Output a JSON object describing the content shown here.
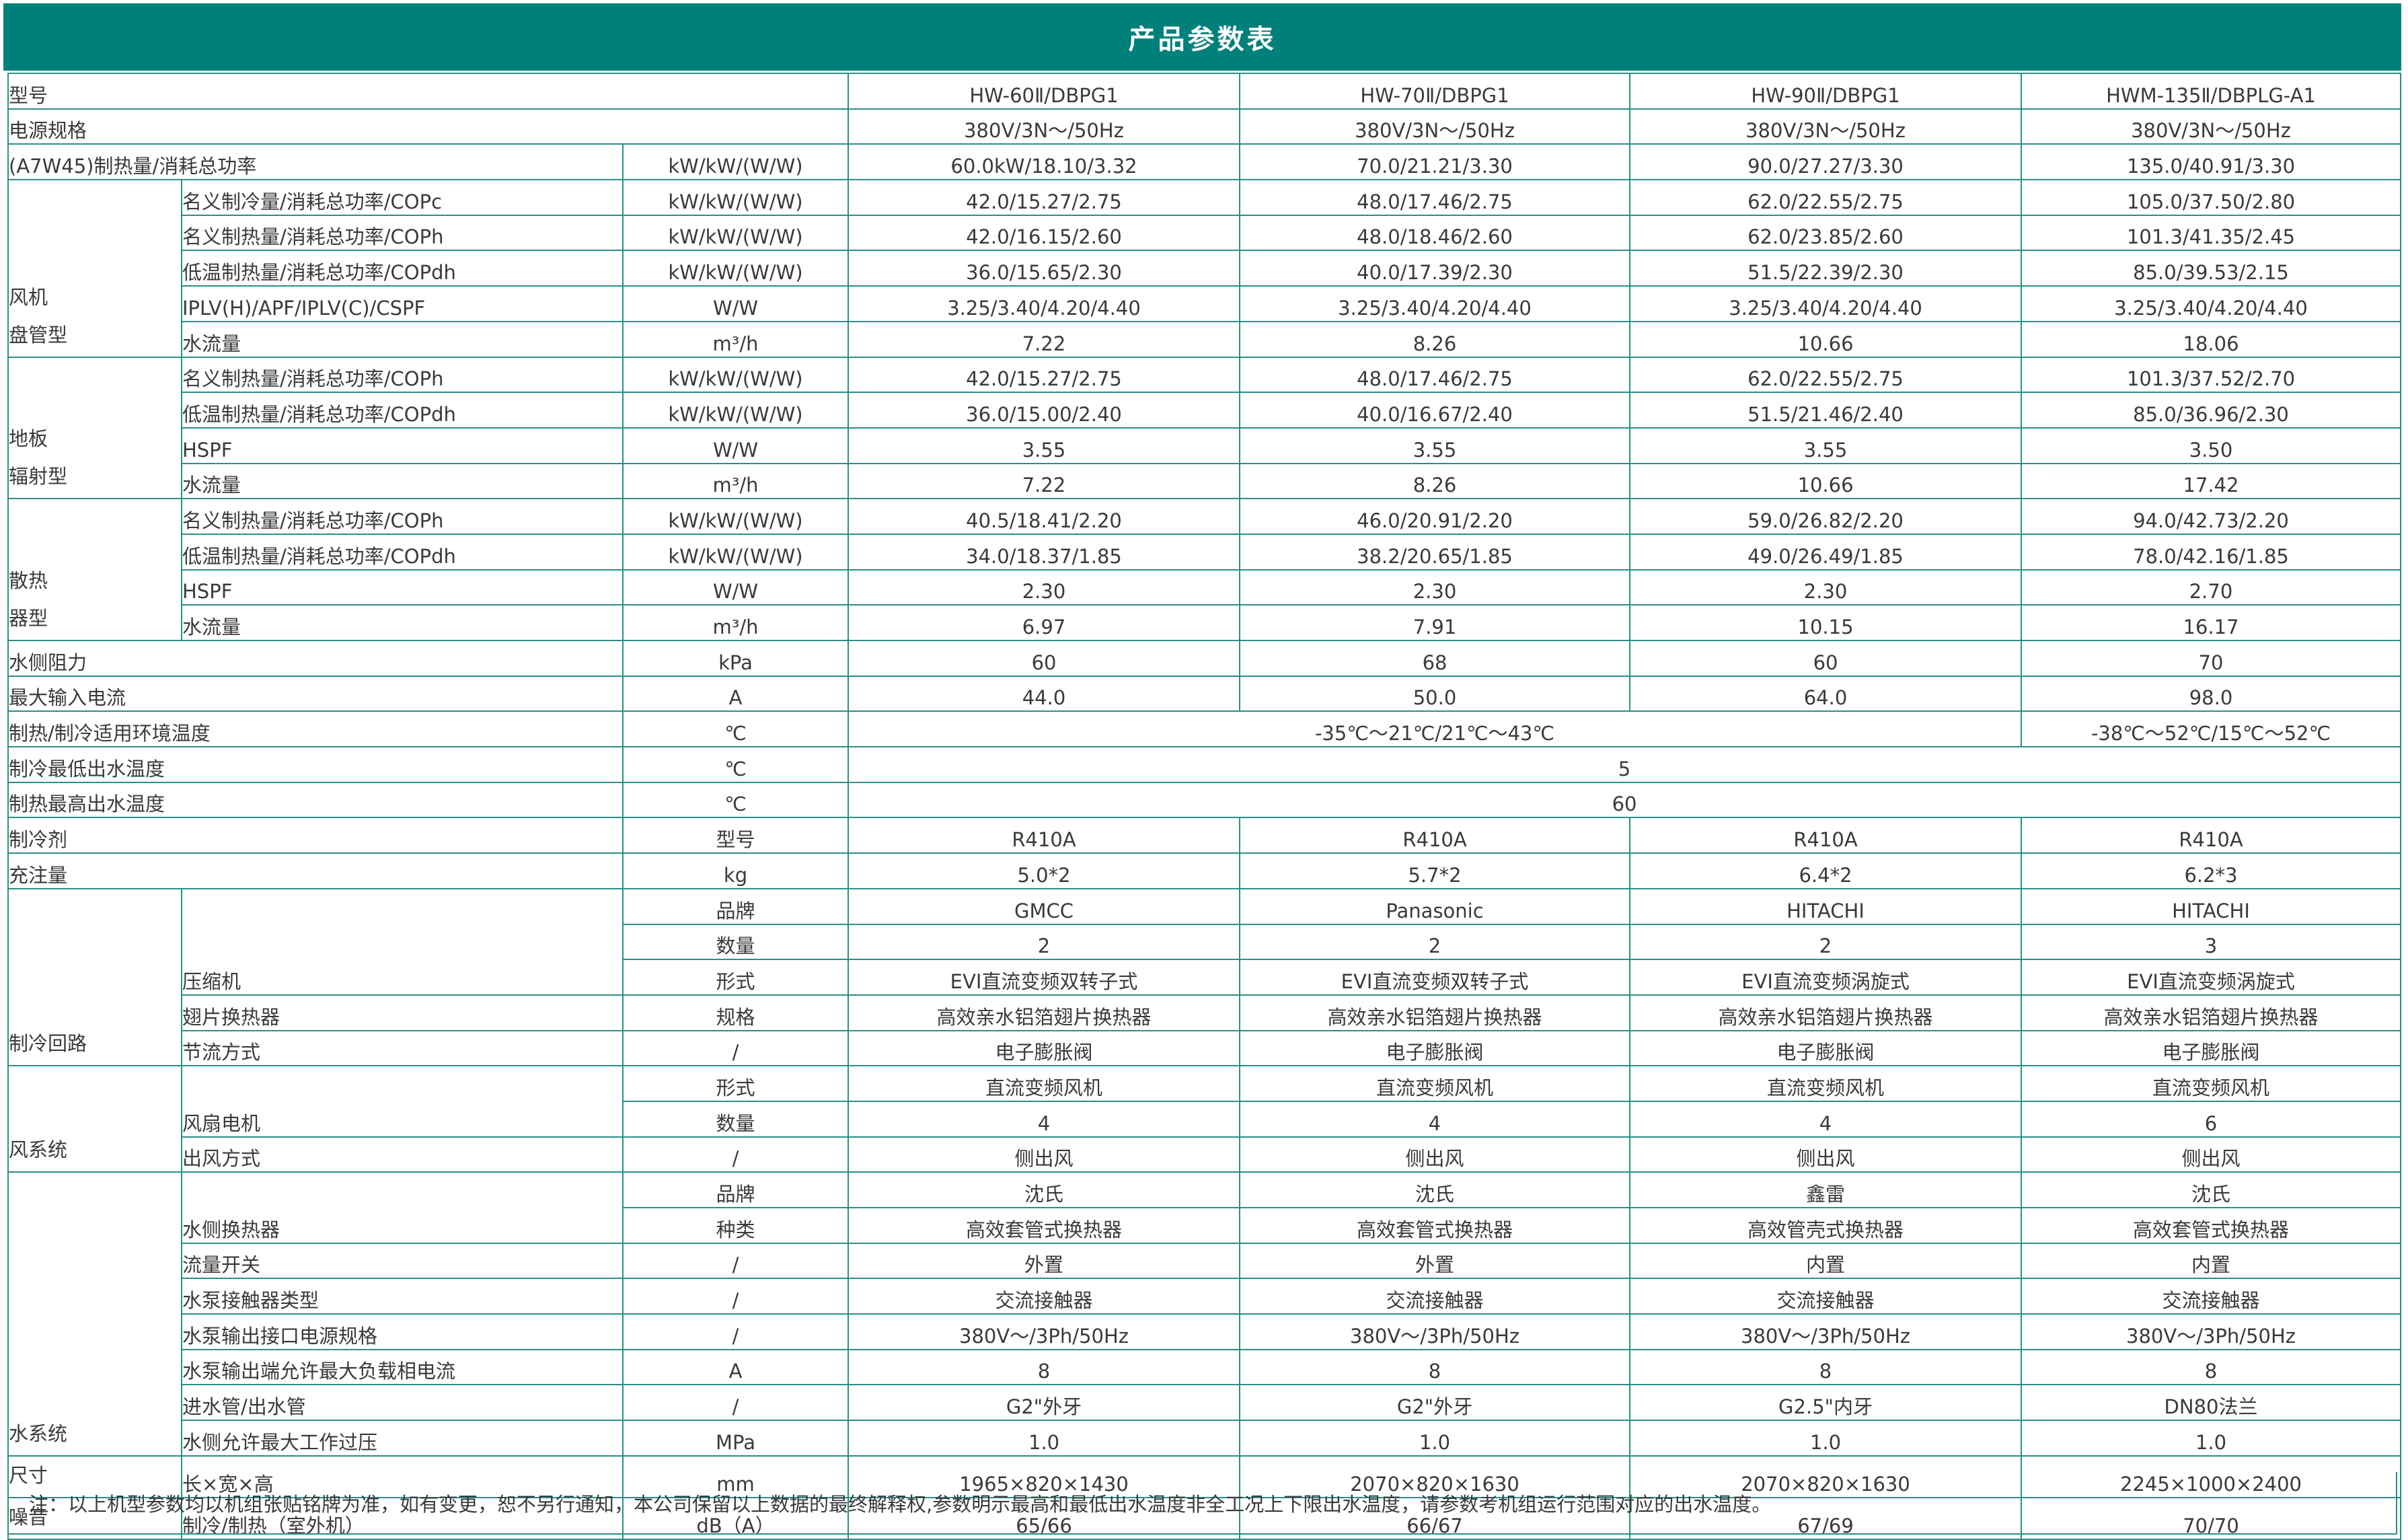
{
  "title": "产品参数表",
  "colors": {
    "accent": "#00807a",
    "border": "#2a8f88"
  },
  "table": {
    "rows": [
      {
        "label": "型号",
        "values": [
          "HW-60Ⅱ/DBPG1",
          "HW-70Ⅱ/DBPG1",
          "HW-90Ⅱ/DBPG1",
          "HWM-135Ⅱ/DBPLG-A1"
        ]
      },
      {
        "label": "电源规格",
        "values": [
          "380V/3N～/50Hz",
          "380V/3N～/50Hz",
          "380V/3N～/50Hz",
          "380V/3N～/50Hz"
        ]
      },
      {
        "label": "(A7W45)制热量/消耗总功率",
        "unit": "kW/kW/(W/W)",
        "values": [
          "60.0kW/18.10/3.32",
          "70.0/21.21/3.30",
          "90.0/27.27/3.30",
          "135.0/40.91/3.30"
        ]
      },
      {
        "group": [
          "风机",
          "盘管型"
        ],
        "items": [
          {
            "label": "名义制冷量/消耗总功率/COPc",
            "unit": "kW/kW/(W/W)",
            "values": [
              "42.0/15.27/2.75",
              "48.0/17.46/2.75",
              "62.0/22.55/2.75",
              "105.0/37.50/2.80"
            ]
          },
          {
            "label": "名义制热量/消耗总功率/COPh",
            "unit": "kW/kW/(W/W)",
            "values": [
              "42.0/16.15/2.60",
              "48.0/18.46/2.60",
              "62.0/23.85/2.60",
              "101.3/41.35/2.45"
            ]
          },
          {
            "label": "低温制热量/消耗总功率/COPdh",
            "unit": "kW/kW/(W/W)",
            "values": [
              "36.0/15.65/2.30",
              "40.0/17.39/2.30",
              "51.5/22.39/2.30",
              "85.0/39.53/2.15"
            ]
          },
          {
            "label": "IPLV(H)/APF/IPLV(C)/CSPF",
            "unit": "W/W",
            "values": [
              "3.25/3.40/4.20/4.40",
              "3.25/3.40/4.20/4.40",
              "3.25/3.40/4.20/4.40",
              "3.25/3.40/4.20/4.40"
            ]
          },
          {
            "label": "水流量",
            "unit": "m³/h",
            "values": [
              "7.22",
              "8.26",
              "10.66",
              "18.06"
            ]
          }
        ]
      },
      {
        "group": [
          "地板",
          "辐射型"
        ],
        "items": [
          {
            "label": "名义制热量/消耗总功率/COPh",
            "unit": "kW/kW/(W/W)",
            "values": [
              "42.0/15.27/2.75",
              "48.0/17.46/2.75",
              "62.0/22.55/2.75",
              "101.3/37.52/2.70"
            ]
          },
          {
            "label": "低温制热量/消耗总功率/COPdh",
            "unit": "kW/kW/(W/W)",
            "values": [
              "36.0/15.00/2.40",
              "40.0/16.67/2.40",
              "51.5/21.46/2.40",
              "85.0/36.96/2.30"
            ]
          },
          {
            "label": "HSPF",
            "unit": "W/W",
            "values": [
              "3.55",
              "3.55",
              "3.55",
              "3.50"
            ]
          },
          {
            "label": "水流量",
            "unit": "m³/h",
            "values": [
              "7.22",
              "8.26",
              "10.66",
              "17.42"
            ]
          }
        ]
      },
      {
        "group": [
          "散热",
          "器型"
        ],
        "items": [
          {
            "label": "名义制热量/消耗总功率/COPh",
            "unit": "kW/kW/(W/W)",
            "values": [
              "40.5/18.41/2.20",
              "46.0/20.91/2.20",
              "59.0/26.82/2.20",
              "94.0/42.73/2.20"
            ]
          },
          {
            "label": "低温制热量/消耗总功率/COPdh",
            "unit": "kW/kW/(W/W)",
            "values": [
              "34.0/18.37/1.85",
              "38.2/20.65/1.85",
              "49.0/26.49/1.85",
              "78.0/42.16/1.85"
            ]
          },
          {
            "label": "HSPF",
            "unit": "W/W",
            "values": [
              "2.30",
              "2.30",
              "2.30",
              "2.70"
            ]
          },
          {
            "label": "水流量",
            "unit": "m³/h",
            "values": [
              "6.97",
              "7.91",
              "10.15",
              "16.17"
            ]
          }
        ]
      },
      {
        "label": "水侧阻力",
        "unit": "kPa",
        "values": [
          "60",
          "68",
          "60",
          "70"
        ]
      },
      {
        "label": "最大输入电流",
        "unit": "A",
        "values": [
          "44.0",
          "50.0",
          "64.0",
          "98.0"
        ]
      },
      {
        "label": "制热/制冷适用环境温度",
        "unit": "℃",
        "values": [
          {
            "text": "-35℃～21℃/21℃～43℃",
            "models": 3
          },
          "-38℃～52℃/15℃～52℃"
        ]
      },
      {
        "label": "制冷最低出水温度",
        "unit": "℃",
        "values": [
          {
            "text": "5",
            "models": 4
          }
        ]
      },
      {
        "label": "制热最高出水温度",
        "unit": "℃",
        "values": [
          {
            "text": "60",
            "models": 4
          }
        ]
      },
      {
        "label": "制冷剂",
        "unit": "型号",
        "values": [
          "R410A",
          "R410A",
          "R410A",
          "R410A"
        ]
      },
      {
        "label": "充注量",
        "unit": "kg",
        "values": [
          "5.0*2",
          "5.7*2",
          "6.4*2",
          "6.2*3"
        ]
      },
      {
        "group": [
          "制冷回路"
        ],
        "items": [
          {
            "label": "压缩机",
            "subitems": [
              {
                "unit": "品牌",
                "values": [
                  "GMCC",
                  "Panasonic",
                  "HITACHI",
                  "HITACHI"
                ]
              },
              {
                "unit": "数量",
                "values": [
                  "2",
                  "2",
                  "2",
                  "3"
                ]
              },
              {
                "unit": "形式",
                "values": [
                  "EVI直流变频双转子式",
                  "EVI直流变频双转子式",
                  "EVI直流变频涡旋式",
                  "EVI直流变频涡旋式"
                ]
              }
            ]
          },
          {
            "label": "翅片换热器",
            "unit": "规格",
            "values": [
              "高效亲水铝箔翅片换热器",
              "高效亲水铝箔翅片换热器",
              "高效亲水铝箔翅片换热器",
              "高效亲水铝箔翅片换热器"
            ]
          },
          {
            "label": "节流方式",
            "unit": "/",
            "values": [
              "电子膨胀阀",
              "电子膨胀阀",
              "电子膨胀阀",
              "电子膨胀阀"
            ]
          }
        ]
      },
      {
        "group": [
          "风系统"
        ],
        "items": [
          {
            "label": "风扇电机",
            "subitems": [
              {
                "unit": "形式",
                "values": [
                  "直流变频风机",
                  "直流变频风机",
                  "直流变频风机",
                  "直流变频风机"
                ]
              },
              {
                "unit": "数量",
                "values": [
                  "4",
                  "4",
                  "4",
                  "6"
                ]
              }
            ]
          },
          {
            "label": "出风方式",
            "unit": "/",
            "values": [
              "侧出风",
              "侧出风",
              "侧出风",
              "侧出风"
            ]
          }
        ]
      },
      {
        "group": [
          "水系统"
        ],
        "items": [
          {
            "label": "水侧换热器",
            "subitems": [
              {
                "unit": "品牌",
                "values": [
                  "沈氏",
                  "沈氏",
                  "鑫雷",
                  "沈氏"
                ]
              },
              {
                "unit": "种类",
                "values": [
                  "高效套管式换热器",
                  "高效套管式换热器",
                  "高效管壳式换热器",
                  "高效套管式换热器"
                ]
              }
            ]
          },
          {
            "label": "流量开关",
            "unit": "/",
            "values": [
              "外置",
              "外置",
              "内置",
              "内置"
            ]
          },
          {
            "label": "水泵接触器类型",
            "unit": "/",
            "values": [
              "交流接触器",
              "交流接触器",
              "交流接触器",
              "交流接触器"
            ]
          },
          {
            "label": "水泵输出接口电源规格",
            "unit": "/",
            "values": [
              "380V～/3Ph/50Hz",
              "380V～/3Ph/50Hz",
              "380V～/3Ph/50Hz",
              "380V～/3Ph/50Hz"
            ]
          },
          {
            "label": "水泵输出端允许最大负载相电流",
            "unit": "A",
            "values": [
              "8",
              "8",
              "8",
              "8"
            ]
          },
          {
            "label": "进水管/出水管",
            "unit": "/",
            "values": [
              "G2\"外牙",
              "G2\"外牙",
              "G2.5\"内牙",
              "DN80法兰"
            ]
          },
          {
            "label": "水侧允许最大工作过压",
            "unit": "MPa",
            "values": [
              "1.0",
              "1.0",
              "1.0",
              "1.0"
            ]
          }
        ]
      },
      {
        "group": [
          "尺寸"
        ],
        "items": [
          {
            "label": "长×宽×高",
            "unit": "mm",
            "values": [
              "1965×820×1430",
              "2070×820×1630",
              "2070×820×1630",
              "2245×1000×2400"
            ]
          }
        ]
      },
      {
        "group": [
          "噪音"
        ],
        "items": [
          {
            "label": "制冷/制热（室外机）",
            "unit": "dB（A）",
            "values": [
              "65/66",
              "66/67",
              "67/69",
              "70/70"
            ]
          }
        ]
      }
    ]
  },
  "note": "注：以上机型参数均以机组张贴铭牌为准，如有变更，恕不另行通知，本公司保留以上数据的最终解释权,参数明示最高和最低出水温度非全工况上下限出水温度，请参数考机组运行范围对应的出水温度。"
}
